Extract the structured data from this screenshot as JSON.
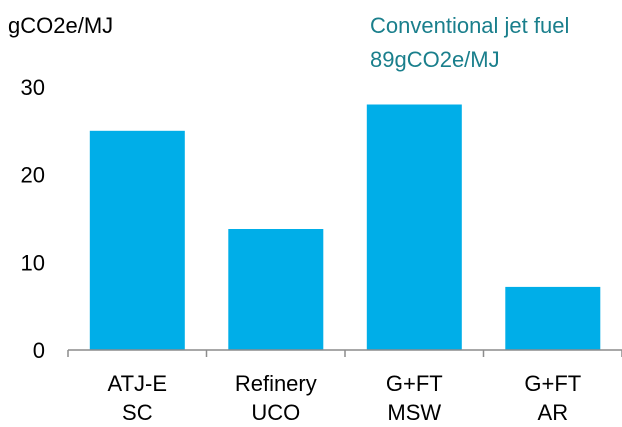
{
  "chart_data": {
    "type": "bar",
    "ylabel": "gCO2e/MJ",
    "annotation": {
      "lines": [
        "Conventional jet fuel",
        "89gCO2e/MJ"
      ],
      "color": "#1a7f8c"
    },
    "categories": [
      [
        "ATJ-E",
        "SC"
      ],
      [
        "Refinery",
        "UCO"
      ],
      [
        "G+FT",
        "MSW"
      ],
      [
        "G+FT",
        "AR"
      ]
    ],
    "values": [
      25,
      13.8,
      28,
      7.2
    ],
    "yticks": [
      0,
      10,
      20,
      30
    ],
    "ylim": [
      0,
      30
    ],
    "bar_color": "#00aee8",
    "axis_color": "#8c8c8c",
    "grid": false
  }
}
